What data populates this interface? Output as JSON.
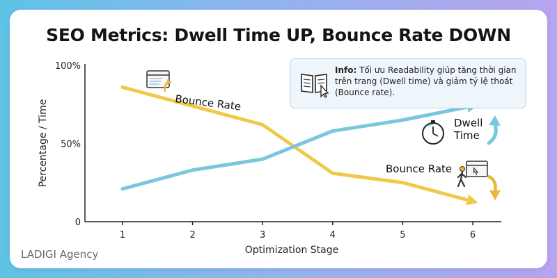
{
  "chart_data": {
    "type": "line",
    "title": "SEO Metrics: Dwell Time UP, Bounce Rate DOWN",
    "xlabel": "Optimization Stage",
    "ylabel": "Percentage / Time",
    "x": [
      1,
      2,
      3,
      4,
      5,
      6
    ],
    "y_ticks": [
      {
        "value": 0,
        "label": "0"
      },
      {
        "value": 50,
        "label": "50%"
      },
      {
        "value": 100,
        "label": "100%"
      }
    ],
    "ylim": [
      0,
      100
    ],
    "grid": false,
    "series": [
      {
        "name": "Bounce Rate",
        "color": "#f0c94a",
        "values": [
          86,
          74,
          62,
          31,
          25,
          13
        ]
      },
      {
        "name": "Dwell Time",
        "color": "#79c6de",
        "values": [
          21,
          33,
          40,
          58,
          65,
          74
        ]
      }
    ],
    "annotations": {
      "bounce_rate_top": "Bounce Rate",
      "bounce_rate_right": "Bounce Rate",
      "dwell_time_line1": "Dwell",
      "dwell_time_line2": "Time"
    }
  },
  "info": {
    "label": "Info:",
    "line1": " Tối ưu Readability giúp tăng thời gian",
    "line2": "trên trang (Dwell time) và giảm tỷ lệ thoát",
    "line3": "(Bounce rate)."
  },
  "watermark": "LADIGI Agency",
  "icons": [
    "browser-window-icon",
    "stopwatch-icon",
    "walking-person-icon",
    "open-book-icon",
    "cursor-icon",
    "arrow-up-icon",
    "arrow-down-icon"
  ]
}
